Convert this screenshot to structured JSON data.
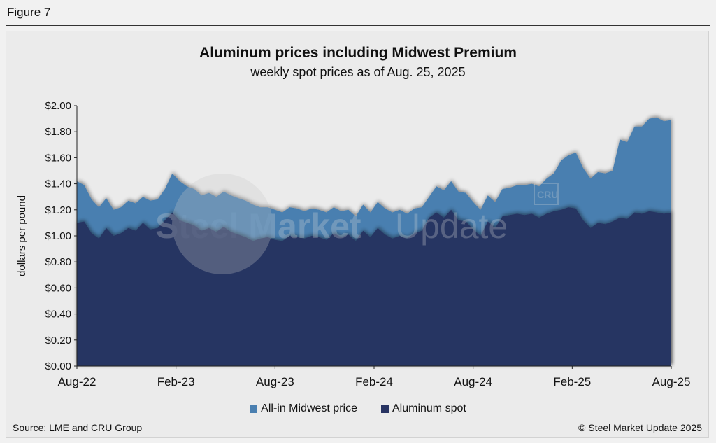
{
  "figure_label": "Figure 7",
  "source": "Source: LME and CRU Group",
  "copyright": "© Steel Market Update 2025",
  "watermark": {
    "text_bold": "Steel Market",
    "text_light": "Update",
    "badge": "CRU"
  },
  "colors": {
    "all_in": "#4a7fb0",
    "spot": "#283462",
    "background": "#ebebeb"
  },
  "chart_data": {
    "type": "area",
    "title": "Aluminum prices including Midwest Premium",
    "subtitle": "weekly spot prices as of Aug. 25, 2025",
    "ylabel": "dollars per pound",
    "xlabel": "",
    "ylim": [
      0,
      2.0
    ],
    "yticks": [
      "$0.00",
      "$0.20",
      "$0.40",
      "$0.60",
      "$0.80",
      "$1.00",
      "$1.20",
      "$1.40",
      "$1.60",
      "$1.80",
      "$2.00"
    ],
    "xticks": [
      "Aug-22",
      "Feb-23",
      "Aug-23",
      "Feb-24",
      "Aug-24",
      "Feb-25",
      "Aug-25"
    ],
    "grid": false,
    "legend_position": "bottom",
    "series": [
      {
        "name": "All-in Midwest price",
        "color": "#4a7fb0",
        "points": [
          [
            0,
            1.42
          ],
          [
            1,
            1.39
          ],
          [
            2,
            1.28
          ],
          [
            3,
            1.22
          ],
          [
            4,
            1.29
          ],
          [
            5,
            1.2
          ],
          [
            6,
            1.22
          ],
          [
            7,
            1.27
          ],
          [
            8,
            1.25
          ],
          [
            9,
            1.3
          ],
          [
            10,
            1.27
          ],
          [
            11,
            1.28
          ],
          [
            12,
            1.36
          ],
          [
            13,
            1.48
          ],
          [
            14,
            1.42
          ],
          [
            15,
            1.38
          ],
          [
            16,
            1.36
          ],
          [
            17,
            1.31
          ],
          [
            18,
            1.33
          ],
          [
            19,
            1.3
          ],
          [
            20,
            1.34
          ],
          [
            21,
            1.31
          ],
          [
            22,
            1.29
          ],
          [
            23,
            1.27
          ],
          [
            24,
            1.24
          ],
          [
            25,
            1.22
          ],
          [
            26,
            1.22
          ],
          [
            27,
            1.2
          ],
          [
            28,
            1.18
          ],
          [
            29,
            1.22
          ],
          [
            30,
            1.21
          ],
          [
            31,
            1.19
          ],
          [
            32,
            1.21
          ],
          [
            33,
            1.2
          ],
          [
            34,
            1.18
          ],
          [
            35,
            1.22
          ],
          [
            36,
            1.19
          ],
          [
            37,
            1.2
          ],
          [
            38,
            1.15
          ],
          [
            39,
            1.24
          ],
          [
            40,
            1.18
          ],
          [
            41,
            1.26
          ],
          [
            42,
            1.21
          ],
          [
            43,
            1.18
          ],
          [
            44,
            1.2
          ],
          [
            45,
            1.17
          ],
          [
            46,
            1.21
          ],
          [
            47,
            1.22
          ],
          [
            48,
            1.3
          ],
          [
            49,
            1.38
          ],
          [
            50,
            1.35
          ],
          [
            51,
            1.42
          ],
          [
            52,
            1.34
          ],
          [
            53,
            1.33
          ],
          [
            54,
            1.26
          ],
          [
            55,
            1.2
          ],
          [
            56,
            1.31
          ],
          [
            57,
            1.26
          ],
          [
            58,
            1.36
          ],
          [
            59,
            1.37
          ],
          [
            60,
            1.39
          ],
          [
            61,
            1.39
          ],
          [
            62,
            1.4
          ],
          [
            63,
            1.38
          ],
          [
            64,
            1.44
          ],
          [
            65,
            1.48
          ],
          [
            66,
            1.58
          ],
          [
            67,
            1.62
          ],
          [
            68,
            1.64
          ],
          [
            69,
            1.52
          ],
          [
            70,
            1.44
          ],
          [
            71,
            1.49
          ],
          [
            72,
            1.48
          ],
          [
            73,
            1.5
          ],
          [
            74,
            1.74
          ],
          [
            75,
            1.72
          ],
          [
            76,
            1.84
          ],
          [
            77,
            1.84
          ],
          [
            78,
            1.9
          ],
          [
            79,
            1.91
          ],
          [
            80,
            1.88
          ],
          [
            81,
            1.89
          ]
        ]
      },
      {
        "name": "Aluminum spot",
        "color": "#283462",
        "points": [
          [
            0,
            1.1
          ],
          [
            1,
            1.11
          ],
          [
            2,
            1.02
          ],
          [
            3,
            0.98
          ],
          [
            4,
            1.06
          ],
          [
            5,
            1.0
          ],
          [
            6,
            1.02
          ],
          [
            7,
            1.06
          ],
          [
            8,
            1.04
          ],
          [
            9,
            1.1
          ],
          [
            10,
            1.05
          ],
          [
            11,
            1.06
          ],
          [
            12,
            1.12
          ],
          [
            13,
            1.18
          ],
          [
            14,
            1.12
          ],
          [
            15,
            1.1
          ],
          [
            16,
            1.08
          ],
          [
            17,
            1.04
          ],
          [
            18,
            1.06
          ],
          [
            19,
            1.03
          ],
          [
            20,
            1.07
          ],
          [
            21,
            1.03
          ],
          [
            22,
            1.01
          ],
          [
            23,
            0.99
          ],
          [
            24,
            0.96
          ],
          [
            25,
            0.98
          ],
          [
            26,
            0.99
          ],
          [
            27,
            0.97
          ],
          [
            28,
            0.96
          ],
          [
            29,
            1.0
          ],
          [
            30,
            0.99
          ],
          [
            31,
            0.98
          ],
          [
            32,
            1.0
          ],
          [
            33,
            0.99
          ],
          [
            34,
            0.97
          ],
          [
            35,
            1.02
          ],
          [
            36,
            0.99
          ],
          [
            37,
            1.01
          ],
          [
            38,
            0.96
          ],
          [
            39,
            1.04
          ],
          [
            40,
            0.99
          ],
          [
            41,
            1.06
          ],
          [
            42,
            1.01
          ],
          [
            43,
            0.98
          ],
          [
            44,
            1.0
          ],
          [
            45,
            0.98
          ],
          [
            46,
            1.02
          ],
          [
            47,
            1.04
          ],
          [
            48,
            1.14
          ],
          [
            49,
            1.18
          ],
          [
            50,
            1.14
          ],
          [
            51,
            1.2
          ],
          [
            52,
            1.12
          ],
          [
            53,
            1.11
          ],
          [
            54,
            1.05
          ],
          [
            55,
            1.0
          ],
          [
            56,
            1.11
          ],
          [
            57,
            1.06
          ],
          [
            58,
            1.15
          ],
          [
            59,
            1.16
          ],
          [
            60,
            1.17
          ],
          [
            61,
            1.16
          ],
          [
            62,
            1.17
          ],
          [
            63,
            1.14
          ],
          [
            64,
            1.17
          ],
          [
            65,
            1.19
          ],
          [
            66,
            1.2
          ],
          [
            67,
            1.22
          ],
          [
            68,
            1.21
          ],
          [
            69,
            1.12
          ],
          [
            70,
            1.06
          ],
          [
            71,
            1.1
          ],
          [
            72,
            1.09
          ],
          [
            73,
            1.11
          ],
          [
            74,
            1.14
          ],
          [
            75,
            1.13
          ],
          [
            76,
            1.18
          ],
          [
            77,
            1.17
          ],
          [
            78,
            1.19
          ],
          [
            79,
            1.18
          ],
          [
            80,
            1.17
          ],
          [
            81,
            1.18
          ]
        ]
      }
    ]
  }
}
